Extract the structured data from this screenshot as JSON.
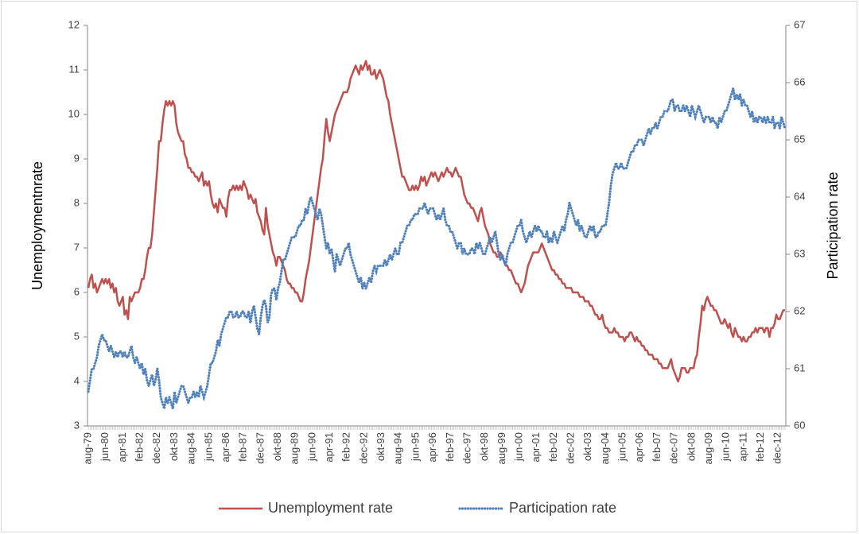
{
  "chart_data": {
    "type": "line",
    "ylabel": "Unemploymentnrate",
    "y2label": "Participation rate",
    "ylim": [
      3,
      12
    ],
    "yticks": [
      3,
      4,
      5,
      6,
      7,
      8,
      9,
      10,
      11,
      12
    ],
    "y2lim": [
      60,
      67
    ],
    "y2ticks": [
      60,
      61,
      62,
      63,
      64,
      65,
      66,
      67
    ],
    "legend": "bottom",
    "categories": [
      "aug-79",
      null,
      null,
      null,
      null,
      null,
      null,
      null,
      null,
      null,
      "jun-80",
      null,
      null,
      null,
      null,
      null,
      null,
      null,
      null,
      null,
      "apr-81",
      null,
      null,
      null,
      null,
      null,
      null,
      null,
      null,
      null,
      "feb-82",
      null,
      null,
      null,
      null,
      null,
      null,
      null,
      null,
      null,
      "dec-82",
      null,
      null,
      null,
      null,
      null,
      null,
      null,
      null,
      null,
      "okt-83",
      null,
      null,
      null,
      null,
      null,
      null,
      null,
      null,
      null,
      "aug-84",
      null,
      null,
      null,
      null,
      null,
      null,
      null,
      null,
      null,
      "jun-85",
      null,
      null,
      null,
      null,
      null,
      null,
      null,
      null,
      null,
      "apr-86",
      null,
      null,
      null,
      null,
      null,
      null,
      null,
      null,
      null,
      "feb-87",
      null,
      null,
      null,
      null,
      null,
      null,
      null,
      null,
      null,
      "dec-87",
      null,
      null,
      null,
      null,
      null,
      null,
      null,
      null,
      null,
      "okt-88",
      null,
      null,
      null,
      null,
      null,
      null,
      null,
      null,
      null,
      "aug-89",
      null,
      null,
      null,
      null,
      null,
      null,
      null,
      null,
      null,
      "jun-90",
      null,
      null,
      null,
      null,
      null,
      null,
      null,
      null,
      null,
      "apr-91",
      null,
      null,
      null,
      null,
      null,
      null,
      null,
      null,
      null,
      "feb-92",
      null,
      null,
      null,
      null,
      null,
      null,
      null,
      null,
      null,
      "dec-92",
      null,
      null,
      null,
      null,
      null,
      null,
      null,
      null,
      null,
      "okt-93",
      null,
      null,
      null,
      null,
      null,
      null,
      null,
      null,
      null,
      "aug-94",
      null,
      null,
      null,
      null,
      null,
      null,
      null,
      null,
      null,
      "jun-95",
      null,
      null,
      null,
      null,
      null,
      null,
      null,
      null,
      null,
      "apr-96",
      null,
      null,
      null,
      null,
      null,
      null,
      null,
      null,
      null,
      "feb-97",
      null,
      null,
      null,
      null,
      null,
      null,
      null,
      null,
      null,
      "dec-97",
      null,
      null,
      null,
      null,
      null,
      null,
      null,
      null,
      null,
      "okt-98",
      null,
      null,
      null,
      null,
      null,
      null,
      null,
      null,
      null,
      "aug-99",
      null,
      null,
      null,
      null,
      null,
      null,
      null,
      null,
      null,
      "jun-00",
      null,
      null,
      null,
      null,
      null,
      null,
      null,
      null,
      null,
      "apr-01",
      null,
      null,
      null,
      null,
      null,
      null,
      null,
      null,
      null,
      "feb-02",
      null,
      null,
      null,
      null,
      null,
      null,
      null,
      null,
      null,
      "dec-02",
      null,
      null,
      null,
      null,
      null,
      null,
      null,
      null,
      null,
      "okt-03",
      null,
      null,
      null,
      null,
      null,
      null,
      null,
      null,
      null,
      "aug-04",
      null,
      null,
      null,
      null,
      null,
      null,
      null,
      null,
      null,
      "jun-05",
      null,
      null,
      null,
      null,
      null,
      null,
      null,
      null,
      null,
      "apr-06",
      null,
      null,
      null,
      null,
      null,
      null,
      null,
      null,
      null,
      "feb-07",
      null,
      null,
      null,
      null,
      null,
      null,
      null,
      null,
      null,
      "dec-07",
      null,
      null,
      null,
      null,
      null,
      null,
      null,
      null,
      null,
      "okt-08",
      null,
      null,
      null,
      null,
      null,
      null,
      null,
      null,
      null,
      "aug-09",
      null,
      null,
      null,
      null,
      null,
      null,
      null,
      null,
      null,
      "jun-10",
      null,
      null,
      null,
      null,
      null,
      null,
      null,
      null,
      null,
      "apr-11",
      null,
      null,
      null,
      null,
      null,
      null,
      null,
      null,
      null,
      "feb-12",
      null,
      null,
      null,
      null,
      null,
      null,
      null,
      null,
      null,
      "dec-12",
      null,
      null,
      null,
      null
    ],
    "series": [
      {
        "name": "Unemployment rate",
        "color": "#c0504d",
        "style": "solid",
        "values": [
          6.1,
          6.3,
          6.4,
          6.1,
          6.2,
          6.0,
          6.1,
          6.2,
          6.3,
          6.2,
          6.3,
          6.2,
          6.3,
          6.1,
          6.2,
          6.0,
          6.1,
          5.8,
          5.7,
          5.8,
          5.9,
          5.5,
          5.6,
          5.4,
          5.9,
          5.8,
          5.9,
          6.0,
          6.0,
          6.0,
          6.1,
          6.3,
          6.3,
          6.5,
          6.8,
          7.0,
          7.0,
          7.3,
          7.8,
          8.3,
          8.8,
          9.4,
          9.4,
          9.8,
          10.1,
          10.3,
          10.2,
          10.3,
          10.2,
          10.3,
          10.2,
          9.8,
          9.6,
          9.5,
          9.4,
          9.4,
          9.1,
          9.0,
          8.8,
          8.8,
          8.7,
          8.7,
          8.6,
          8.6,
          8.5,
          8.6,
          8.7,
          8.4,
          8.5,
          8.4,
          8.5,
          8.2,
          8.0,
          7.9,
          8.0,
          7.8,
          8.1,
          8.0,
          7.9,
          7.9,
          7.7,
          8.1,
          8.3,
          8.3,
          8.4,
          8.3,
          8.4,
          8.3,
          8.4,
          8.3,
          8.5,
          8.4,
          8.3,
          8.1,
          8.2,
          8.1,
          8.0,
          8.1,
          7.8,
          7.7,
          7.6,
          7.4,
          7.3,
          7.9,
          7.5,
          7.3,
          7.1,
          6.9,
          6.8,
          6.6,
          6.8,
          6.8,
          6.7,
          6.6,
          6.5,
          6.3,
          6.2,
          6.2,
          6.1,
          6.1,
          6.0,
          6.0,
          5.9,
          5.8,
          5.8,
          6.0,
          6.3,
          6.5,
          6.7,
          7.0,
          7.3,
          7.6,
          7.9,
          8.2,
          8.5,
          8.8,
          9.0,
          9.5,
          9.9,
          9.6,
          9.4,
          9.6,
          9.8,
          10.0,
          10.1,
          10.2,
          10.3,
          10.4,
          10.5,
          10.5,
          10.5,
          10.6,
          10.8,
          10.9,
          11.0,
          11.1,
          11.0,
          10.9,
          11.1,
          11.0,
          11.1,
          11.2,
          11.0,
          11.1,
          10.9,
          10.9,
          11.0,
          10.8,
          10.9,
          11.0,
          10.9,
          10.8,
          10.6,
          10.4,
          10.3,
          10.0,
          9.8,
          9.6,
          9.4,
          9.2,
          9.0,
          8.8,
          8.6,
          8.6,
          8.5,
          8.4,
          8.3,
          8.3,
          8.4,
          8.3,
          8.4,
          8.3,
          8.4,
          8.6,
          8.5,
          8.6,
          8.4,
          8.5,
          8.6,
          8.7,
          8.6,
          8.7,
          8.6,
          8.5,
          8.6,
          8.7,
          8.6,
          8.7,
          8.8,
          8.7,
          8.7,
          8.6,
          8.7,
          8.8,
          8.7,
          8.6,
          8.6,
          8.4,
          8.2,
          8.1,
          8.0,
          8.0,
          7.9,
          7.9,
          7.8,
          7.7,
          7.6,
          7.8,
          7.9,
          7.7,
          7.5,
          7.4,
          7.3,
          7.1,
          7.0,
          6.9,
          6.9,
          6.8,
          6.8,
          6.9,
          6.8,
          6.7,
          6.6,
          6.6,
          6.5,
          6.5,
          6.4,
          6.3,
          6.2,
          6.2,
          6.1,
          6.0,
          6.1,
          6.2,
          6.4,
          6.6,
          6.7,
          6.8,
          6.9,
          6.9,
          6.9,
          6.9,
          7.0,
          7.1,
          7.0,
          6.9,
          6.8,
          6.7,
          6.6,
          6.5,
          6.5,
          6.4,
          6.4,
          6.3,
          6.3,
          6.2,
          6.2,
          6.1,
          6.1,
          6.1,
          6.1,
          6.0,
          6.0,
          6.0,
          6.0,
          5.9,
          5.9,
          5.9,
          5.8,
          5.8,
          5.8,
          5.7,
          5.7,
          5.6,
          5.5,
          5.5,
          5.4,
          5.4,
          5.5,
          5.3,
          5.2,
          5.2,
          5.1,
          5.1,
          5.1,
          5.2,
          5.1,
          5.1,
          5.0,
          5.0,
          5.0,
          4.9,
          5.0,
          5.0,
          5.1,
          5.1,
          5.0,
          4.9,
          5.0,
          4.9,
          4.9,
          4.8,
          4.8,
          4.7,
          4.7,
          4.6,
          4.6,
          4.6,
          4.5,
          4.5,
          4.5,
          4.4,
          4.4,
          4.3,
          4.3,
          4.3,
          4.3,
          4.4,
          4.5,
          4.3,
          4.2,
          4.1,
          4.0,
          4.1,
          4.3,
          4.3,
          4.3,
          4.2,
          4.2,
          4.3,
          4.3,
          4.3,
          4.5,
          4.6,
          5.0,
          5.3,
          5.7,
          5.6,
          5.8,
          5.9,
          5.8,
          5.7,
          5.7,
          5.6,
          5.6,
          5.5,
          5.4,
          5.3,
          5.3,
          5.4,
          5.3,
          5.2,
          5.3,
          5.1,
          5.0,
          5.2,
          5.1,
          5.0,
          5.0,
          4.9,
          5.0,
          4.9,
          4.9,
          5.0,
          5.0,
          5.1,
          5.1,
          5.2,
          5.1,
          5.2,
          5.2,
          5.2,
          5.1,
          5.2,
          5.2,
          5.0,
          5.2,
          5.2,
          5.3,
          5.5,
          5.4,
          5.4,
          5.5,
          5.6,
          5.6
        ]
      },
      {
        "name": "Participation rate",
        "color": "#4f81bd",
        "style": "dotted",
        "axis": "y2",
        "values": [
          60.6,
          60.8,
          61.0,
          61.0,
          61.1,
          61.2,
          61.4,
          61.5,
          61.6,
          61.5,
          61.5,
          61.4,
          61.3,
          61.4,
          61.3,
          61.2,
          61.3,
          61.2,
          61.3,
          61.3,
          61.2,
          61.3,
          61.2,
          61.2,
          61.3,
          61.4,
          61.2,
          61.1,
          61.2,
          61.1,
          61.0,
          61.1,
          60.9,
          61.0,
          60.8,
          60.7,
          60.8,
          60.9,
          60.7,
          60.8,
          61.0,
          60.8,
          60.5,
          60.4,
          60.3,
          60.5,
          60.4,
          60.5,
          60.4,
          60.3,
          60.6,
          60.4,
          60.5,
          60.6,
          60.7,
          60.7,
          60.6,
          60.5,
          60.4,
          60.5,
          60.5,
          60.6,
          60.5,
          60.6,
          60.5,
          60.7,
          60.6,
          60.5,
          60.6,
          60.7,
          60.9,
          61.1,
          61.1,
          61.2,
          61.3,
          61.5,
          61.4,
          61.6,
          61.7,
          61.8,
          61.9,
          61.9,
          62.0,
          62.0,
          61.9,
          61.9,
          62.0,
          61.9,
          61.9,
          62.0,
          62.0,
          61.9,
          61.9,
          62.0,
          61.8,
          62.0,
          62.1,
          61.9,
          61.7,
          61.6,
          61.9,
          62.1,
          62.2,
          62.1,
          61.8,
          61.9,
          62.3,
          62.4,
          62.4,
          62.2,
          62.4,
          62.5,
          62.7,
          62.9,
          62.9,
          63.0,
          63.1,
          63.2,
          63.3,
          63.3,
          63.3,
          63.4,
          63.5,
          63.5,
          63.6,
          63.6,
          63.8,
          63.7,
          63.9,
          64.0,
          63.9,
          63.8,
          63.7,
          63.6,
          63.8,
          63.7,
          63.5,
          63.3,
          63.1,
          63.2,
          63.0,
          63.1,
          62.9,
          62.7,
          63.0,
          62.9,
          62.8,
          62.9,
          63.0,
          63.1,
          63.1,
          63.2,
          63.0,
          62.9,
          62.8,
          62.7,
          62.6,
          62.5,
          62.6,
          62.4,
          62.5,
          62.4,
          62.5,
          62.6,
          62.5,
          62.7,
          62.8,
          62.7,
          62.8,
          62.8,
          62.8,
          62.8,
          62.9,
          62.8,
          62.9,
          63.0,
          62.9,
          63.0,
          63.1,
          63.0,
          63.0,
          63.2,
          63.2,
          63.3,
          63.4,
          63.5,
          63.5,
          63.6,
          63.6,
          63.7,
          63.7,
          63.7,
          63.8,
          63.8,
          63.8,
          63.9,
          63.8,
          63.7,
          63.8,
          63.8,
          63.8,
          63.7,
          63.6,
          63.7,
          63.6,
          63.7,
          63.8,
          63.6,
          63.5,
          63.5,
          63.4,
          63.4,
          63.3,
          63.2,
          63.1,
          63.2,
          63.2,
          63.0,
          63.1,
          63.0,
          63.0,
          63.0,
          63.1,
          63.1,
          63.0,
          63.2,
          63.1,
          63.2,
          63.1,
          63.0,
          63.0,
          63.1,
          63.2,
          63.3,
          63.2,
          63.3,
          63.4,
          63.2,
          63.0,
          62.9,
          63.0,
          62.9,
          62.8,
          63.0,
          63.1,
          63.2,
          63.2,
          63.3,
          63.4,
          63.5,
          63.5,
          63.6,
          63.4,
          63.3,
          63.2,
          63.3,
          63.4,
          63.3,
          63.4,
          63.5,
          63.4,
          63.5,
          63.4,
          63.4,
          63.3,
          63.3,
          63.4,
          63.2,
          63.3,
          63.2,
          63.4,
          63.3,
          63.2,
          63.3,
          63.4,
          63.5,
          63.4,
          63.6,
          63.7,
          63.9,
          63.8,
          63.7,
          63.6,
          63.5,
          63.6,
          63.4,
          63.5,
          63.4,
          63.3,
          63.3,
          63.4,
          63.5,
          63.4,
          63.5,
          63.3,
          63.3,
          63.4,
          63.4,
          63.5,
          63.5,
          63.5,
          63.7,
          63.9,
          64.2,
          64.4,
          64.5,
          64.6,
          64.5,
          64.5,
          64.6,
          64.5,
          64.5,
          64.5,
          64.6,
          64.7,
          64.8,
          64.8,
          64.9,
          64.9,
          65.0,
          65.0,
          65.0,
          64.9,
          65.0,
          65.1,
          65.2,
          65.1,
          65.2,
          65.2,
          65.3,
          65.2,
          65.3,
          65.4,
          65.4,
          65.5,
          65.5,
          65.5,
          65.6,
          65.7,
          65.7,
          65.5,
          65.6,
          65.6,
          65.5,
          65.5,
          65.6,
          65.5,
          65.6,
          65.5,
          65.4,
          65.6,
          65.5,
          65.4,
          65.5,
          65.6,
          65.5,
          65.4,
          65.3,
          65.4,
          65.4,
          65.4,
          65.3,
          65.4,
          65.3,
          65.3,
          65.2,
          65.4,
          65.3,
          65.4,
          65.5,
          65.5,
          65.6,
          65.7,
          65.8,
          65.9,
          65.7,
          65.8,
          65.7,
          65.8,
          65.6,
          65.7,
          65.6,
          65.6,
          65.5,
          65.4,
          65.5,
          65.3,
          65.4,
          65.3,
          65.4,
          65.4,
          65.3,
          65.4,
          65.3,
          65.4,
          65.3,
          65.3,
          65.4,
          65.2,
          65.3,
          65.3,
          65.2,
          65.4,
          65.3,
          65.2
        ]
      }
    ]
  }
}
